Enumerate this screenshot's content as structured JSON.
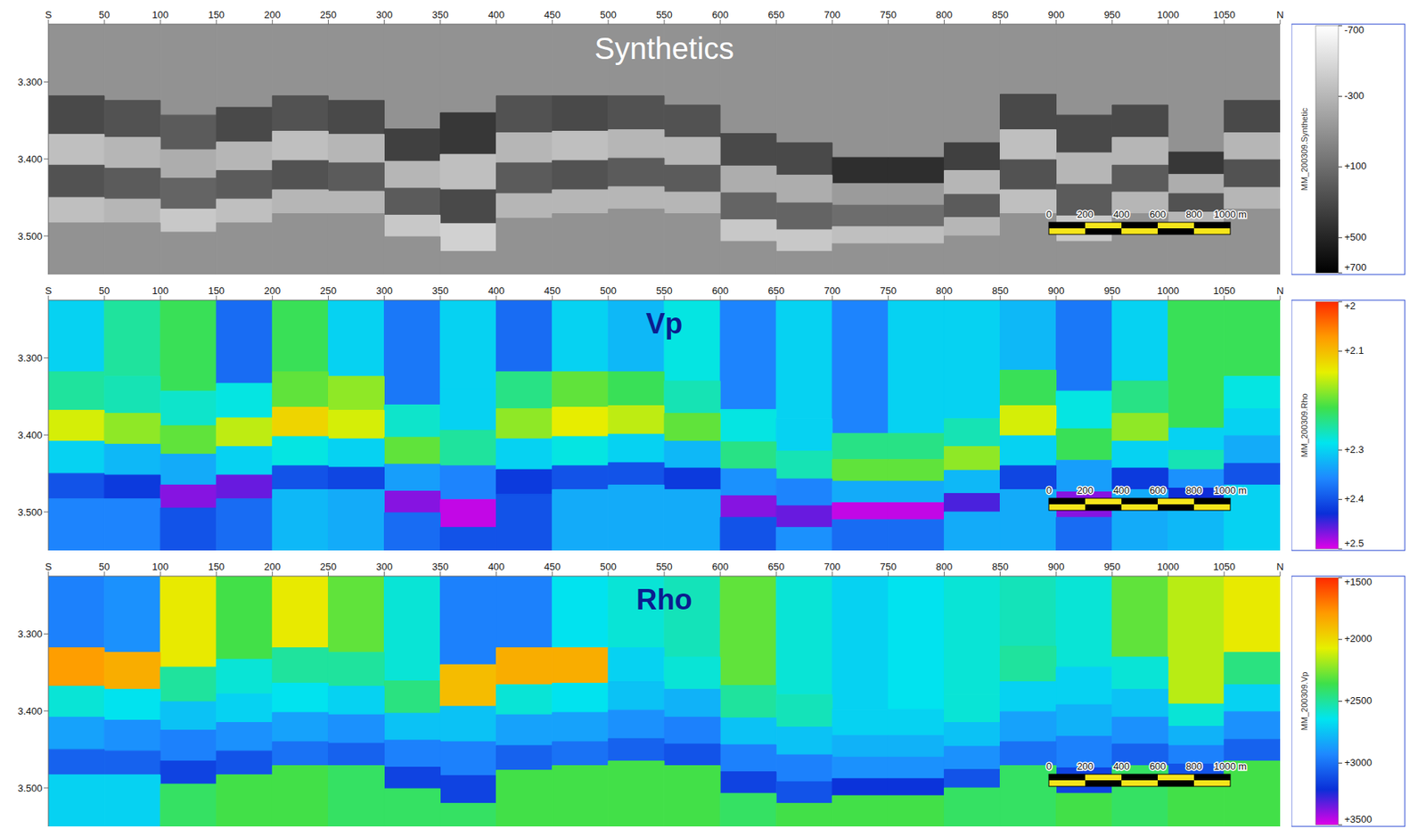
{
  "chart_data": [
    {
      "type": "section",
      "title": "Synthetics",
      "x": [
        25,
        75,
        125,
        175,
        225,
        275,
        325,
        375,
        425,
        475,
        525,
        575,
        625,
        675,
        725,
        775,
        825,
        875,
        925,
        975,
        1025,
        1075
      ],
      "xlim": [
        0,
        1100
      ],
      "xticks": [
        {
          "value": 0,
          "label": "S"
        },
        50,
        100,
        150,
        200,
        250,
        300,
        350,
        400,
        450,
        500,
        550,
        600,
        650,
        700,
        750,
        800,
        850,
        900,
        950,
        1000,
        1050,
        {
          "value": 1100,
          "label": "N"
        }
      ],
      "ylim": [
        3.225,
        3.55
      ],
      "yticks": [
        {
          "value": 3.3,
          "label": "3.300"
        },
        {
          "value": 3.4,
          "label": "3.400"
        },
        {
          "value": 3.5,
          "label": "3.500"
        }
      ],
      "horizons": [
        [
          3.318,
          3.324,
          3.343,
          3.333,
          3.318,
          3.324,
          3.361,
          3.34,
          3.318,
          3.318,
          3.318,
          3.33,
          3.367,
          3.379,
          3.398,
          3.398,
          3.379,
          3.316,
          3.343,
          3.33,
          3.391,
          3.324
        ],
        [
          3.368,
          3.372,
          3.388,
          3.378,
          3.364,
          3.368,
          3.403,
          3.394,
          3.366,
          3.364,
          3.362,
          3.372,
          3.409,
          3.421,
          3.432,
          3.432,
          3.415,
          3.362,
          3.392,
          3.372,
          3.42,
          3.366
        ],
        [
          3.408,
          3.412,
          3.425,
          3.415,
          3.402,
          3.405,
          3.438,
          3.44,
          3.405,
          3.402,
          3.399,
          3.408,
          3.444,
          3.457,
          3.46,
          3.46,
          3.446,
          3.401,
          3.433,
          3.408,
          3.445,
          3.401
        ],
        [
          3.45,
          3.452,
          3.465,
          3.452,
          3.44,
          3.442,
          3.473,
          3.484,
          3.445,
          3.44,
          3.436,
          3.443,
          3.479,
          3.492,
          3.488,
          3.488,
          3.476,
          3.44,
          3.474,
          3.443,
          3.469,
          3.437
        ],
        [
          3.483,
          3.483,
          3.495,
          3.483,
          3.471,
          3.471,
          3.501,
          3.52,
          3.477,
          3.471,
          3.465,
          3.471,
          3.507,
          3.52,
          3.51,
          3.51,
          3.5,
          3.471,
          3.507,
          3.471,
          3.489,
          3.465
        ]
      ],
      "cells": {
        "above": [
          -100,
          -100,
          -100,
          -100,
          -100,
          -100,
          -100,
          -100,
          -100,
          -100,
          -100,
          -100,
          -100,
          -100,
          -100,
          -100,
          -100,
          -100,
          -100,
          -100,
          -100,
          -100
        ],
        "layers": [
          [
            300,
            250,
            200,
            300,
            250,
            300,
            350,
            400,
            250,
            300,
            250,
            250,
            300,
            300,
            450,
            450,
            350,
            300,
            300,
            300,
            400,
            300
          ],
          [
            -350,
            -300,
            -250,
            -300,
            -350,
            -300,
            -300,
            -350,
            -300,
            -350,
            -300,
            -300,
            -250,
            -250,
            -150,
            -150,
            -300,
            -350,
            -300,
            -300,
            -250,
            -300
          ],
          [
            250,
            200,
            150,
            200,
            250,
            200,
            200,
            300,
            200,
            250,
            200,
            200,
            150,
            150,
            100,
            100,
            200,
            250,
            200,
            200,
            250,
            250
          ],
          [
            -350,
            -300,
            -400,
            -350,
            -300,
            -300,
            -400,
            -450,
            -300,
            -300,
            -300,
            -300,
            -400,
            -400,
            -350,
            -350,
            -300,
            -350,
            -400,
            -300,
            -300,
            -300
          ]
        ],
        "below": [
          -100,
          -100,
          -100,
          -100,
          -100,
          -100,
          -100,
          -100,
          -100,
          -100,
          -100,
          -100,
          -100,
          -100,
          -100,
          -100,
          -100,
          -100,
          -100,
          -100,
          -100,
          -100
        ]
      },
      "colorbar": {
        "title": "MM_200309.Synthetic",
        "range": [
          -700,
          700
        ],
        "ticks": [
          -700,
          -300,
          {
            "value": 100,
            "label": "+100"
          },
          {
            "value": 500,
            "label": "+500"
          },
          {
            "value": 700,
            "label": "+700"
          }
        ],
        "colors": [
          "#ffffff",
          "#000000"
        ]
      },
      "scale_bar": [
        0,
        200,
        400,
        600,
        800,
        {
          "value": 1000,
          "label": "1000 m"
        }
      ]
    },
    {
      "type": "section",
      "title": "Vp",
      "x": [
        25,
        75,
        125,
        175,
        225,
        275,
        325,
        375,
        425,
        475,
        525,
        575,
        625,
        675,
        725,
        775,
        825,
        875,
        925,
        975,
        1025,
        1075
      ],
      "xlim": [
        0,
        1100
      ],
      "xticks": [
        {
          "value": 0,
          "label": "S"
        },
        50,
        100,
        150,
        200,
        250,
        300,
        350,
        400,
        450,
        500,
        550,
        600,
        650,
        700,
        750,
        800,
        850,
        900,
        950,
        1000,
        1050,
        {
          "value": 1100,
          "label": "N"
        }
      ],
      "ylim": [
        3.225,
        3.55
      ],
      "yticks": [
        {
          "value": 3.3,
          "label": "3.300"
        },
        {
          "value": 3.4,
          "label": "3.400"
        },
        {
          "value": 3.5,
          "label": "3.500"
        }
      ],
      "horizons": [
        [
          3.318,
          3.324,
          3.343,
          3.333,
          3.318,
          3.324,
          3.361,
          3.34,
          3.318,
          3.318,
          3.318,
          3.33,
          3.367,
          3.379,
          3.398,
          3.398,
          3.379,
          3.316,
          3.343,
          3.33,
          3.391,
          3.324
        ],
        [
          3.368,
          3.372,
          3.388,
          3.378,
          3.364,
          3.368,
          3.403,
          3.394,
          3.366,
          3.364,
          3.362,
          3.372,
          3.409,
          3.421,
          3.432,
          3.432,
          3.415,
          3.362,
          3.392,
          3.372,
          3.42,
          3.366
        ],
        [
          3.408,
          3.412,
          3.425,
          3.415,
          3.402,
          3.405,
          3.438,
          3.44,
          3.405,
          3.402,
          3.399,
          3.408,
          3.444,
          3.457,
          3.46,
          3.46,
          3.446,
          3.401,
          3.433,
          3.408,
          3.445,
          3.401
        ],
        [
          3.45,
          3.452,
          3.465,
          3.452,
          3.44,
          3.442,
          3.473,
          3.484,
          3.445,
          3.44,
          3.436,
          3.443,
          3.479,
          3.492,
          3.488,
          3.488,
          3.476,
          3.44,
          3.474,
          3.443,
          3.469,
          3.437
        ],
        [
          3.483,
          3.483,
          3.495,
          3.483,
          3.471,
          3.471,
          3.501,
          3.52,
          3.477,
          3.471,
          3.465,
          3.471,
          3.507,
          3.52,
          3.51,
          3.51,
          3.5,
          3.471,
          3.507,
          3.471,
          3.489,
          3.465
        ]
      ],
      "cells": {
        "above": [
          2.3,
          2.25,
          2.22,
          2.38,
          2.22,
          2.3,
          2.37,
          2.3,
          2.38,
          2.3,
          2.32,
          2.28,
          2.36,
          2.3,
          2.36,
          2.3,
          2.3,
          2.32,
          2.37,
          2.3,
          2.22,
          2.22
        ],
        "layers": [
          [
            2.25,
            2.26,
            2.27,
            2.28,
            2.2,
            2.18,
            2.27,
            2.3,
            2.24,
            2.2,
            2.22,
            2.26,
            2.28,
            2.3,
            2.24,
            2.24,
            2.26,
            2.22,
            2.28,
            2.24,
            2.3,
            2.28
          ],
          [
            2.15,
            2.18,
            2.2,
            2.16,
            2.12,
            2.15,
            2.2,
            2.25,
            2.18,
            2.14,
            2.16,
            2.2,
            2.24,
            2.26,
            2.2,
            2.2,
            2.18,
            2.15,
            2.22,
            2.18,
            2.26,
            2.3
          ],
          [
            2.3,
            2.32,
            2.33,
            2.3,
            2.28,
            2.3,
            2.34,
            2.36,
            2.3,
            2.28,
            2.3,
            2.32,
            2.35,
            2.36,
            2.33,
            2.33,
            2.32,
            2.3,
            2.34,
            2.3,
            2.35,
            2.33
          ],
          [
            2.4,
            2.42,
            2.47,
            2.46,
            2.4,
            2.41,
            2.47,
            2.49,
            2.42,
            2.4,
            2.4,
            2.42,
            2.47,
            2.46,
            2.49,
            2.49,
            2.45,
            2.41,
            2.47,
            2.42,
            2.43,
            2.4
          ]
        ],
        "below": [
          2.36,
          2.36,
          2.4,
          2.38,
          2.32,
          2.33,
          2.38,
          2.4,
          2.4,
          2.33,
          2.33,
          2.33,
          2.4,
          2.35,
          2.38,
          2.38,
          2.33,
          2.33,
          2.38,
          2.33,
          2.32,
          2.3
        ]
      },
      "colorbar": {
        "title": "MM_200309.Rho",
        "range": [
          2,
          2.5
        ],
        "ticks": [
          {
            "value": 2,
            "label": "+2"
          },
          {
            "value": 2.1,
            "label": "+2.1"
          },
          {
            "value": 2.3,
            "label": "+2.3"
          },
          {
            "value": 2.4,
            "label": "+2.4"
          },
          {
            "value": 2.5,
            "label": "+2.5"
          }
        ],
        "colors": [
          "#ff2a00",
          "#ff9a00",
          "#e6f000",
          "#3ee04a",
          "#00e5ef",
          "#1e88ff",
          "#0a2fd8",
          "#e000e8"
        ]
      },
      "scale_bar": [
        0,
        200,
        400,
        600,
        800,
        {
          "value": 1000,
          "label": "1000 m"
        }
      ]
    },
    {
      "type": "section",
      "title": "Rho",
      "x": [
        25,
        75,
        125,
        175,
        225,
        275,
        325,
        375,
        425,
        475,
        525,
        575,
        625,
        675,
        725,
        775,
        825,
        875,
        925,
        975,
        1025,
        1075
      ],
      "xlim": [
        0,
        1100
      ],
      "xticks": [
        {
          "value": 0,
          "label": "S"
        },
        50,
        100,
        150,
        200,
        250,
        300,
        350,
        400,
        450,
        500,
        550,
        600,
        650,
        700,
        750,
        800,
        850,
        900,
        950,
        1000,
        1050,
        {
          "value": 1100,
          "label": "N"
        }
      ],
      "ylim": [
        3.225,
        3.55
      ],
      "yticks": [
        {
          "value": 3.3,
          "label": "3.300"
        },
        {
          "value": 3.4,
          "label": "3.400"
        },
        {
          "value": 3.5,
          "label": "3.500"
        }
      ],
      "horizons": [
        [
          3.318,
          3.324,
          3.343,
          3.333,
          3.318,
          3.324,
          3.361,
          3.34,
          3.318,
          3.318,
          3.318,
          3.33,
          3.367,
          3.379,
          3.398,
          3.398,
          3.379,
          3.316,
          3.343,
          3.33,
          3.391,
          3.324
        ],
        [
          3.368,
          3.372,
          3.388,
          3.378,
          3.364,
          3.368,
          3.403,
          3.394,
          3.366,
          3.364,
          3.362,
          3.372,
          3.409,
          3.421,
          3.432,
          3.432,
          3.415,
          3.362,
          3.392,
          3.372,
          3.42,
          3.366
        ],
        [
          3.408,
          3.412,
          3.425,
          3.415,
          3.402,
          3.405,
          3.438,
          3.44,
          3.405,
          3.402,
          3.399,
          3.408,
          3.444,
          3.457,
          3.46,
          3.46,
          3.446,
          3.401,
          3.433,
          3.408,
          3.445,
          3.401
        ],
        [
          3.45,
          3.452,
          3.465,
          3.452,
          3.44,
          3.442,
          3.473,
          3.484,
          3.445,
          3.44,
          3.436,
          3.443,
          3.479,
          3.492,
          3.488,
          3.488,
          3.476,
          3.44,
          3.474,
          3.443,
          3.469,
          3.437
        ],
        [
          3.483,
          3.483,
          3.495,
          3.483,
          3.471,
          3.471,
          3.501,
          3.52,
          3.477,
          3.471,
          3.465,
          3.471,
          3.507,
          3.52,
          3.51,
          3.51,
          3.5,
          3.471,
          3.507,
          3.471,
          3.489,
          3.465
        ]
      ],
      "cells": {
        "above": [
          2950,
          2900,
          2050,
          2350,
          2050,
          2300,
          2600,
          2950,
          2950,
          2650,
          2600,
          2550,
          2300,
          2600,
          2700,
          2650,
          2600,
          2550,
          2600,
          2300,
          2150,
          2050
        ],
        "layers": [
          [
            1800,
            1850,
            2500,
            2600,
            2500,
            2500,
            2450,
            1900,
            1850,
            1850,
            2700,
            2600,
            2500,
            2550,
            2700,
            2700,
            2600,
            2500,
            2700,
            2600,
            2600,
            2450
          ],
          [
            2600,
            2650,
            2750,
            2700,
            2650,
            2700,
            2750,
            2750,
            2600,
            2650,
            2750,
            2800,
            2750,
            2750,
            2800,
            2800,
            2750,
            2700,
            2800,
            2750,
            2800,
            2700
          ],
          [
            2850,
            2900,
            2950,
            2900,
            2850,
            2900,
            2950,
            2950,
            2850,
            2850,
            2900,
            2950,
            2950,
            2950,
            2900,
            2900,
            2900,
            2850,
            2950,
            2900,
            2950,
            2900
          ],
          [
            3050,
            3050,
            3150,
            3100,
            3000,
            3050,
            3150,
            3150,
            3050,
            3000,
            3050,
            3100,
            3150,
            3100,
            3200,
            3200,
            3100,
            3000,
            3150,
            3050,
            3100,
            3050
          ]
        ],
        "below": [
          2700,
          2700,
          2400,
          2350,
          2350,
          2400,
          2400,
          2400,
          2350,
          2350,
          2350,
          2350,
          2400,
          2350,
          2350,
          2350,
          2400,
          2400,
          2350,
          2400,
          2350,
          2350
        ]
      },
      "colorbar": {
        "title": "MM_200309.Vp",
        "range": [
          1500,
          3500
        ],
        "ticks": [
          {
            "value": 1500,
            "label": "+1500"
          },
          {
            "value": 2000,
            "label": "+2000"
          },
          {
            "value": 2500,
            "label": "+2500"
          },
          {
            "value": 3000,
            "label": "+3000"
          },
          {
            "value": 3500,
            "label": "+3500"
          }
        ],
        "colors": [
          "#ff2a00",
          "#ff9a00",
          "#e6f000",
          "#3ee04a",
          "#00e5ef",
          "#1e88ff",
          "#0a2fd8",
          "#e000e8"
        ]
      },
      "scale_bar": [
        0,
        200,
        400,
        600,
        800,
        {
          "value": 1000,
          "label": "1000 m"
        }
      ]
    }
  ]
}
